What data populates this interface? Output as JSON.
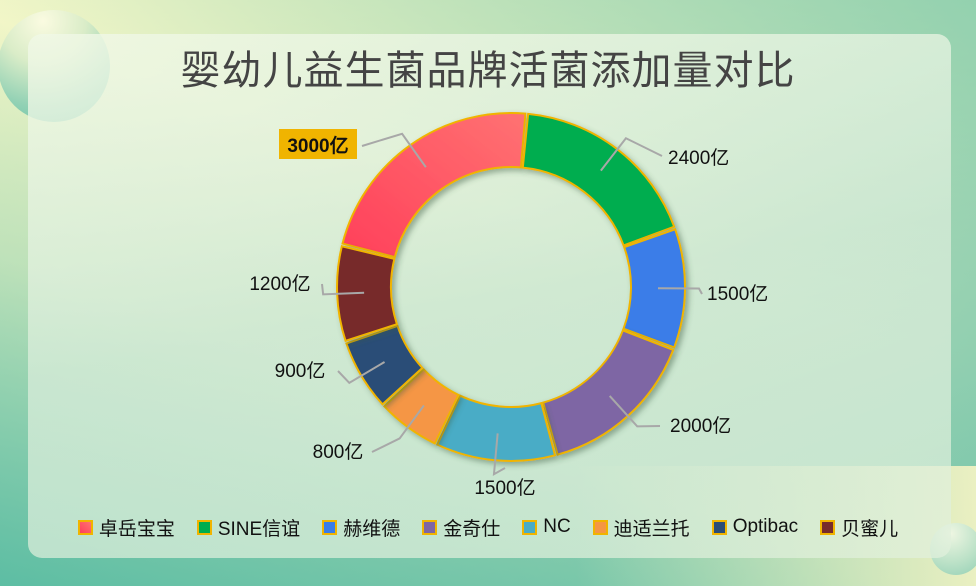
{
  "title": "婴幼儿益生菌品牌活菌添加量对比",
  "chart_data": {
    "type": "pie",
    "subtype": "donut",
    "title": "婴幼儿益生菌品牌活菌添加量对比",
    "unit": "亿",
    "categories": [
      "卓岳宝宝",
      "SINE信谊",
      "赫维德",
      "金奇仕",
      "NC",
      "迪适兰托",
      "Optibac",
      "贝蜜儿"
    ],
    "values": [
      3000,
      2400,
      1500,
      2000,
      1500,
      800,
      900,
      1200
    ],
    "labels": [
      "3000亿",
      "2400亿",
      "1500亿",
      "2000亿",
      "1500亿",
      "800亿",
      "900亿",
      "1200亿"
    ],
    "colors": [
      "#ff5a6a",
      "#00ad4f",
      "#3a7de8",
      "#7e66a4",
      "#4aacc6",
      "#f59644",
      "#2b4d77",
      "#772b2b"
    ],
    "highlighted_label": "3000亿",
    "highlight_color": "#f0b400",
    "segment_border_color": "#f0b400",
    "legend_position": "bottom"
  },
  "legend": [
    {
      "label": "卓岳宝宝",
      "color": "#ff5a6a"
    },
    {
      "label": "SINE信谊",
      "color": "#00ad4f"
    },
    {
      "label": "赫维德",
      "color": "#3a7de8"
    },
    {
      "label": "金奇仕",
      "color": "#7e66a4"
    },
    {
      "label": "NC",
      "color": "#4aacc6"
    },
    {
      "label": "迪适兰托",
      "color": "#f59644"
    },
    {
      "label": "Optibac",
      "color": "#2b4d77"
    },
    {
      "label": "贝蜜儿",
      "color": "#772b2b"
    }
  ]
}
